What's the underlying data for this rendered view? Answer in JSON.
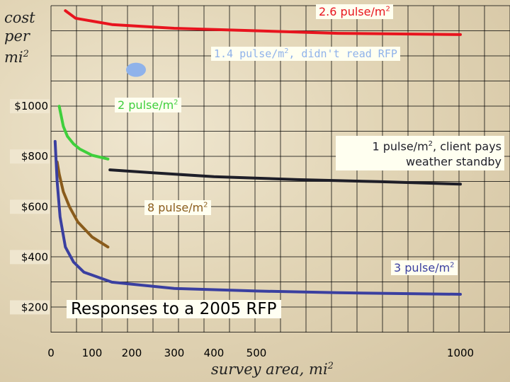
{
  "chart_data": {
    "type": "line",
    "title": "Responses to a 2005 RFP",
    "xlabel_parts": {
      "text": "survey area, mi",
      "sup": "2"
    },
    "ylabel_parts": {
      "line1": "cost",
      "line2": "per",
      "line3": "mi",
      "sup": "2"
    },
    "x_ticks": [
      {
        "value": 0,
        "label": "0"
      },
      {
        "value": 100,
        "label": "100"
      },
      {
        "value": 200,
        "label": "200"
      },
      {
        "value": 300,
        "label": "300"
      },
      {
        "value": 400,
        "label": "400"
      },
      {
        "value": 500,
        "label": "500"
      },
      {
        "value": 1000,
        "label": "1000"
      }
    ],
    "y_ticks": [
      {
        "value": 200,
        "label": "$200"
      },
      {
        "value": 400,
        "label": "$400"
      },
      {
        "value": 600,
        "label": "$600"
      },
      {
        "value": 800,
        "label": "$800"
      },
      {
        "value": 1000,
        "label": "$1000"
      }
    ],
    "grid": true,
    "series": [
      {
        "name": "2.6 pulse/m",
        "sup": "2",
        "color": "#e8141e",
        "points": [
          [
            35,
            1380
          ],
          [
            60,
            1350
          ],
          [
            150,
            1325
          ],
          [
            300,
            1310
          ],
          [
            500,
            1300
          ],
          [
            700,
            1290
          ],
          [
            1000,
            1285
          ]
        ]
      },
      {
        "name": "1.4 pulse/m",
        "name_suffix": ", didn't read RFP",
        "sup": "2",
        "color": "#8fb2ea",
        "points": [
          [
            210,
            1145
          ]
        ]
      },
      {
        "name": "2 pulse/m",
        "sup": "2",
        "color": "#3fcf3c",
        "points": [
          [
            20,
            1000
          ],
          [
            30,
            920
          ],
          [
            40,
            880
          ],
          [
            55,
            850
          ],
          [
            70,
            830
          ],
          [
            100,
            805
          ],
          [
            140,
            790
          ]
        ]
      },
      {
        "name": "1 pulse/m",
        "name_suffix": ", client pays weather standby",
        "sup": "2",
        "color": "#1e1e28",
        "points": [
          [
            145,
            747
          ],
          [
            250,
            735
          ],
          [
            400,
            720
          ],
          [
            600,
            708
          ],
          [
            800,
            700
          ],
          [
            1000,
            690
          ]
        ]
      },
      {
        "name": "8 pulse/m",
        "sup": "2",
        "color": "#8a5c1c",
        "points": [
          [
            15,
            778
          ],
          [
            20,
            730
          ],
          [
            30,
            660
          ],
          [
            45,
            600
          ],
          [
            65,
            540
          ],
          [
            100,
            480
          ],
          [
            140,
            440
          ]
        ]
      },
      {
        "name": "3 pulse/m",
        "sup": "2",
        "color": "#3a3fa0",
        "points": [
          [
            10,
            860
          ],
          [
            15,
            700
          ],
          [
            22,
            560
          ],
          [
            35,
            440
          ],
          [
            55,
            380
          ],
          [
            80,
            340
          ],
          [
            150,
            300
          ],
          [
            300,
            275
          ],
          [
            500,
            265
          ],
          [
            700,
            258
          ],
          [
            1000,
            252
          ]
        ]
      }
    ]
  }
}
